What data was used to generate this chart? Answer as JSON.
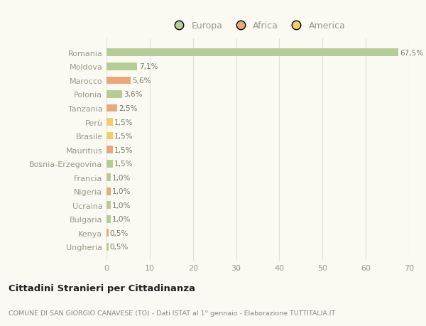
{
  "categories": [
    "Romania",
    "Moldova",
    "Marocco",
    "Polonia",
    "Tanzania",
    "Perù",
    "Brasile",
    "Mauritius",
    "Bosnia-Erzegovina",
    "Francia",
    "Nigeria",
    "Ucraina",
    "Bulgaria",
    "Kenya",
    "Ungheria"
  ],
  "values": [
    67.5,
    7.1,
    5.6,
    3.6,
    2.5,
    1.5,
    1.5,
    1.5,
    1.5,
    1.0,
    1.0,
    1.0,
    1.0,
    0.5,
    0.5
  ],
  "labels": [
    "67,5%",
    "7,1%",
    "5,6%",
    "3,6%",
    "2,5%",
    "1,5%",
    "1,5%",
    "1,5%",
    "1,5%",
    "1,0%",
    "1,0%",
    "1,0%",
    "1,0%",
    "0,5%",
    "0,5%"
  ],
  "continents": [
    "Europa",
    "Europa",
    "Africa",
    "Europa",
    "Africa",
    "America",
    "America",
    "Africa",
    "Europa",
    "Europa",
    "Africa",
    "Europa",
    "Europa",
    "Africa",
    "Europa"
  ],
  "colors": {
    "Europa": "#b5cc96",
    "Africa": "#e8a87c",
    "America": "#f0ce6a"
  },
  "xlim": [
    0,
    70
  ],
  "xticks": [
    0,
    10,
    20,
    30,
    40,
    50,
    60,
    70
  ],
  "background_color": "#fafaf2",
  "grid_color": "#e0e0d0",
  "title": "Cittadini Stranieri per Cittadinanza",
  "subtitle": "COMUNE DI SAN GIORGIO CANAVESE (TO) - Dati ISTAT al 1° gennaio - Elaborazione TUTTITALIA.IT",
  "bar_height": 0.55,
  "label_fontsize": 7.5,
  "ytick_fontsize": 8,
  "xtick_fontsize": 8,
  "axis_label_color": "#999988",
  "bar_label_color": "#777766",
  "title_color": "#222222",
  "subtitle_color": "#888888"
}
